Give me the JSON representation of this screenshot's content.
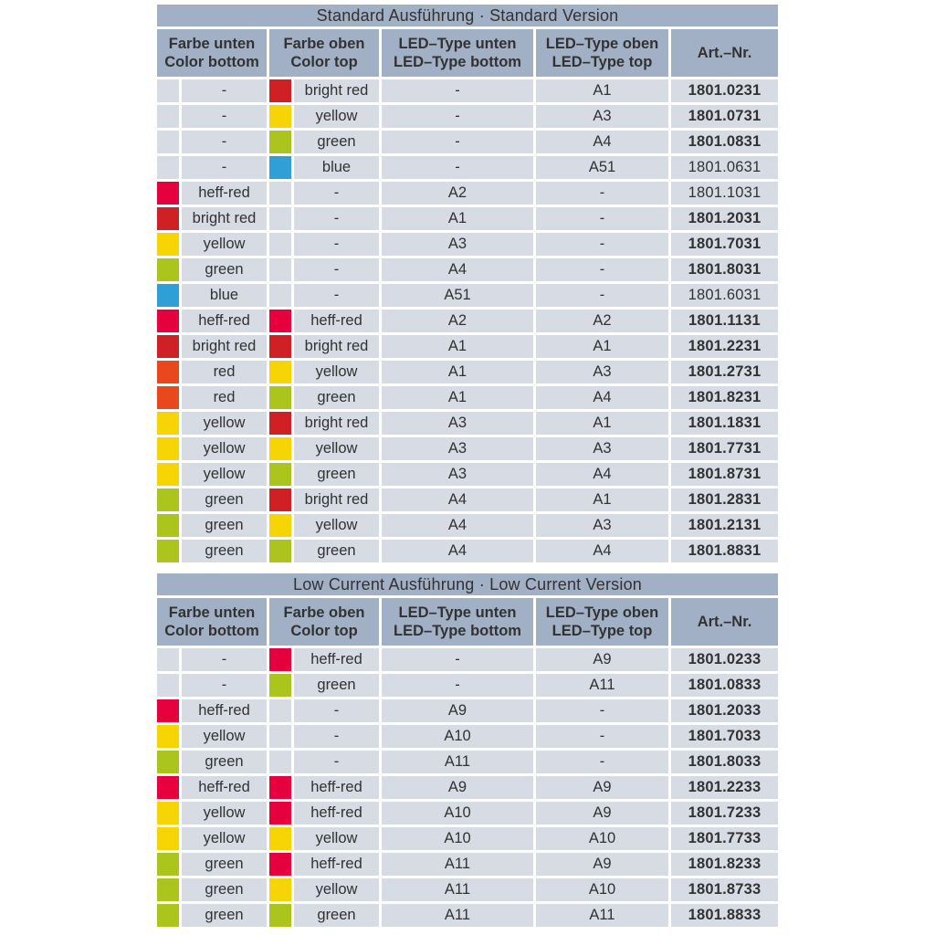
{
  "colors": {
    "header_bg": "#a2b0c6",
    "row_bg": "#d6dbe4",
    "text": "#323232",
    "swatches": {
      "heff_red": "#e6003e",
      "bright_red": "#cf2026",
      "red": "#e8481c",
      "yellow": "#f7d504",
      "green": "#abc51c",
      "blue": "#2f9fd7"
    }
  },
  "tables": [
    {
      "title": "Standard Ausführung · Standard Version",
      "headers": [
        {
          "key": "farbe-unten",
          "de": "Farbe unten",
          "en": "Color bottom"
        },
        {
          "key": "farbe-oben",
          "de": "Farbe oben",
          "en": "Color top"
        },
        {
          "key": "led-type-unten",
          "de": "LED–Type unten",
          "en": "LED–Type bottom"
        },
        {
          "key": "led-type-oben",
          "de": "LED–Type oben",
          "en": "LED–Type top"
        },
        {
          "key": "art-nr",
          "de": "Art.–Nr.",
          "en": ""
        }
      ],
      "rows": [
        {
          "color_bottom": null,
          "color_bottom_label": "-",
          "color_top": "bright_red",
          "color_top_label": "bright red",
          "led_bottom": "-",
          "led_top": "A1",
          "art_nr": "1801.0231",
          "art_bold": true
        },
        {
          "color_bottom": null,
          "color_bottom_label": "-",
          "color_top": "yellow",
          "color_top_label": "yellow",
          "led_bottom": "-",
          "led_top": "A3",
          "art_nr": "1801.0731",
          "art_bold": true
        },
        {
          "color_bottom": null,
          "color_bottom_label": "-",
          "color_top": "green",
          "color_top_label": "green",
          "led_bottom": "-",
          "led_top": "A4",
          "art_nr": "1801.0831",
          "art_bold": true
        },
        {
          "color_bottom": null,
          "color_bottom_label": "-",
          "color_top": "blue",
          "color_top_label": "blue",
          "led_bottom": "-",
          "led_top": "A51",
          "art_nr": "1801.0631",
          "art_bold": false
        },
        {
          "color_bottom": "heff_red",
          "color_bottom_label": "heff-red",
          "color_top": null,
          "color_top_label": "-",
          "led_bottom": "A2",
          "led_top": "-",
          "art_nr": "1801.1031",
          "art_bold": false
        },
        {
          "color_bottom": "bright_red",
          "color_bottom_label": "bright red",
          "color_top": null,
          "color_top_label": "-",
          "led_bottom": "A1",
          "led_top": "-",
          "art_nr": "1801.2031",
          "art_bold": true
        },
        {
          "color_bottom": "yellow",
          "color_bottom_label": "yellow",
          "color_top": null,
          "color_top_label": "-",
          "led_bottom": "A3",
          "led_top": "-",
          "art_nr": "1801.7031",
          "art_bold": true
        },
        {
          "color_bottom": "green",
          "color_bottom_label": "green",
          "color_top": null,
          "color_top_label": "-",
          "led_bottom": "A4",
          "led_top": "-",
          "art_nr": "1801.8031",
          "art_bold": true
        },
        {
          "color_bottom": "blue",
          "color_bottom_label": "blue",
          "color_top": null,
          "color_top_label": "-",
          "led_bottom": "A51",
          "led_top": "-",
          "art_nr": "1801.6031",
          "art_bold": false
        },
        {
          "color_bottom": "heff_red",
          "color_bottom_label": "heff-red",
          "color_top": "heff_red",
          "color_top_label": "heff-red",
          "led_bottom": "A2",
          "led_top": "A2",
          "art_nr": "1801.1131",
          "art_bold": true
        },
        {
          "color_bottom": "bright_red",
          "color_bottom_label": "bright red",
          "color_top": "bright_red",
          "color_top_label": "bright red",
          "led_bottom": "A1",
          "led_top": "A1",
          "art_nr": "1801.2231",
          "art_bold": true
        },
        {
          "color_bottom": "red",
          "color_bottom_label": "red",
          "color_top": "yellow",
          "color_top_label": "yellow",
          "led_bottom": "A1",
          "led_top": "A3",
          "art_nr": "1801.2731",
          "art_bold": true
        },
        {
          "color_bottom": "red",
          "color_bottom_label": "red",
          "color_top": "green",
          "color_top_label": "green",
          "led_bottom": "A1",
          "led_top": "A4",
          "art_nr": "1801.8231",
          "art_bold": true
        },
        {
          "color_bottom": "yellow",
          "color_bottom_label": "yellow",
          "color_top": "bright_red",
          "color_top_label": "bright red",
          "led_bottom": "A3",
          "led_top": "A1",
          "art_nr": "1801.1831",
          "art_bold": true
        },
        {
          "color_bottom": "yellow",
          "color_bottom_label": "yellow",
          "color_top": "yellow",
          "color_top_label": "yellow",
          "led_bottom": "A3",
          "led_top": "A3",
          "art_nr": "1801.7731",
          "art_bold": true
        },
        {
          "color_bottom": "yellow",
          "color_bottom_label": "yellow",
          "color_top": "green",
          "color_top_label": "green",
          "led_bottom": "A3",
          "led_top": "A4",
          "art_nr": "1801.8731",
          "art_bold": true
        },
        {
          "color_bottom": "green",
          "color_bottom_label": "green",
          "color_top": "bright_red",
          "color_top_label": "bright red",
          "led_bottom": "A4",
          "led_top": "A1",
          "art_nr": "1801.2831",
          "art_bold": true
        },
        {
          "color_bottom": "green",
          "color_bottom_label": "green",
          "color_top": "yellow",
          "color_top_label": "yellow",
          "led_bottom": "A4",
          "led_top": "A3",
          "art_nr": "1801.2131",
          "art_bold": true
        },
        {
          "color_bottom": "green",
          "color_bottom_label": "green",
          "color_top": "green",
          "color_top_label": "green",
          "led_bottom": "A4",
          "led_top": "A4",
          "art_nr": "1801.8831",
          "art_bold": true
        }
      ]
    },
    {
      "title": "Low Current Ausführung · Low Current Version",
      "headers": [
        {
          "key": "farbe-unten",
          "de": "Farbe unten",
          "en": "Color bottom"
        },
        {
          "key": "farbe-oben",
          "de": "Farbe oben",
          "en": "Color top"
        },
        {
          "key": "led-type-unten",
          "de": "LED–Type unten",
          "en": "LED–Type bottom"
        },
        {
          "key": "led-type-oben",
          "de": "LED–Type oben",
          "en": "LED–Type top"
        },
        {
          "key": "art-nr",
          "de": "Art.–Nr.",
          "en": ""
        }
      ],
      "rows": [
        {
          "color_bottom": null,
          "color_bottom_label": "-",
          "color_top": "heff_red",
          "color_top_label": "heff-red",
          "led_bottom": "-",
          "led_top": "A9",
          "art_nr": "1801.0233",
          "art_bold": true
        },
        {
          "color_bottom": null,
          "color_bottom_label": "-",
          "color_top": "green",
          "color_top_label": "green",
          "led_bottom": "-",
          "led_top": "A11",
          "art_nr": "1801.0833",
          "art_bold": true
        },
        {
          "color_bottom": "heff_red",
          "color_bottom_label": "heff-red",
          "color_top": null,
          "color_top_label": "-",
          "led_bottom": "A9",
          "led_top": "-",
          "art_nr": "1801.2033",
          "art_bold": true
        },
        {
          "color_bottom": "yellow",
          "color_bottom_label": "yellow",
          "color_top": null,
          "color_top_label": "-",
          "led_bottom": "A10",
          "led_top": "-",
          "art_nr": "1801.7033",
          "art_bold": true
        },
        {
          "color_bottom": "green",
          "color_bottom_label": "green",
          "color_top": null,
          "color_top_label": "-",
          "led_bottom": "A11",
          "led_top": "-",
          "art_nr": "1801.8033",
          "art_bold": true
        },
        {
          "color_bottom": "heff_red",
          "color_bottom_label": "heff-red",
          "color_top": "heff_red",
          "color_top_label": "heff-red",
          "led_bottom": "A9",
          "led_top": "A9",
          "art_nr": "1801.2233",
          "art_bold": true
        },
        {
          "color_bottom": "yellow",
          "color_bottom_label": "yellow",
          "color_top": "heff_red",
          "color_top_label": "heff-red",
          "led_bottom": "A10",
          "led_top": "A9",
          "art_nr": "1801.7233",
          "art_bold": true
        },
        {
          "color_bottom": "yellow",
          "color_bottom_label": "yellow",
          "color_top": "yellow",
          "color_top_label": "yellow",
          "led_bottom": "A10",
          "led_top": "A10",
          "art_nr": "1801.7733",
          "art_bold": true
        },
        {
          "color_bottom": "green",
          "color_bottom_label": "green",
          "color_top": "heff_red",
          "color_top_label": "heff-red",
          "led_bottom": "A11",
          "led_top": "A9",
          "art_nr": "1801.8233",
          "art_bold": true
        },
        {
          "color_bottom": "green",
          "color_bottom_label": "green",
          "color_top": "yellow",
          "color_top_label": "yellow",
          "led_bottom": "A11",
          "led_top": "A10",
          "art_nr": "1801.8733",
          "art_bold": true
        },
        {
          "color_bottom": "green",
          "color_bottom_label": "green",
          "color_top": "green",
          "color_top_label": "green",
          "led_bottom": "A11",
          "led_top": "A11",
          "art_nr": "1801.8833",
          "art_bold": true
        }
      ]
    }
  ]
}
